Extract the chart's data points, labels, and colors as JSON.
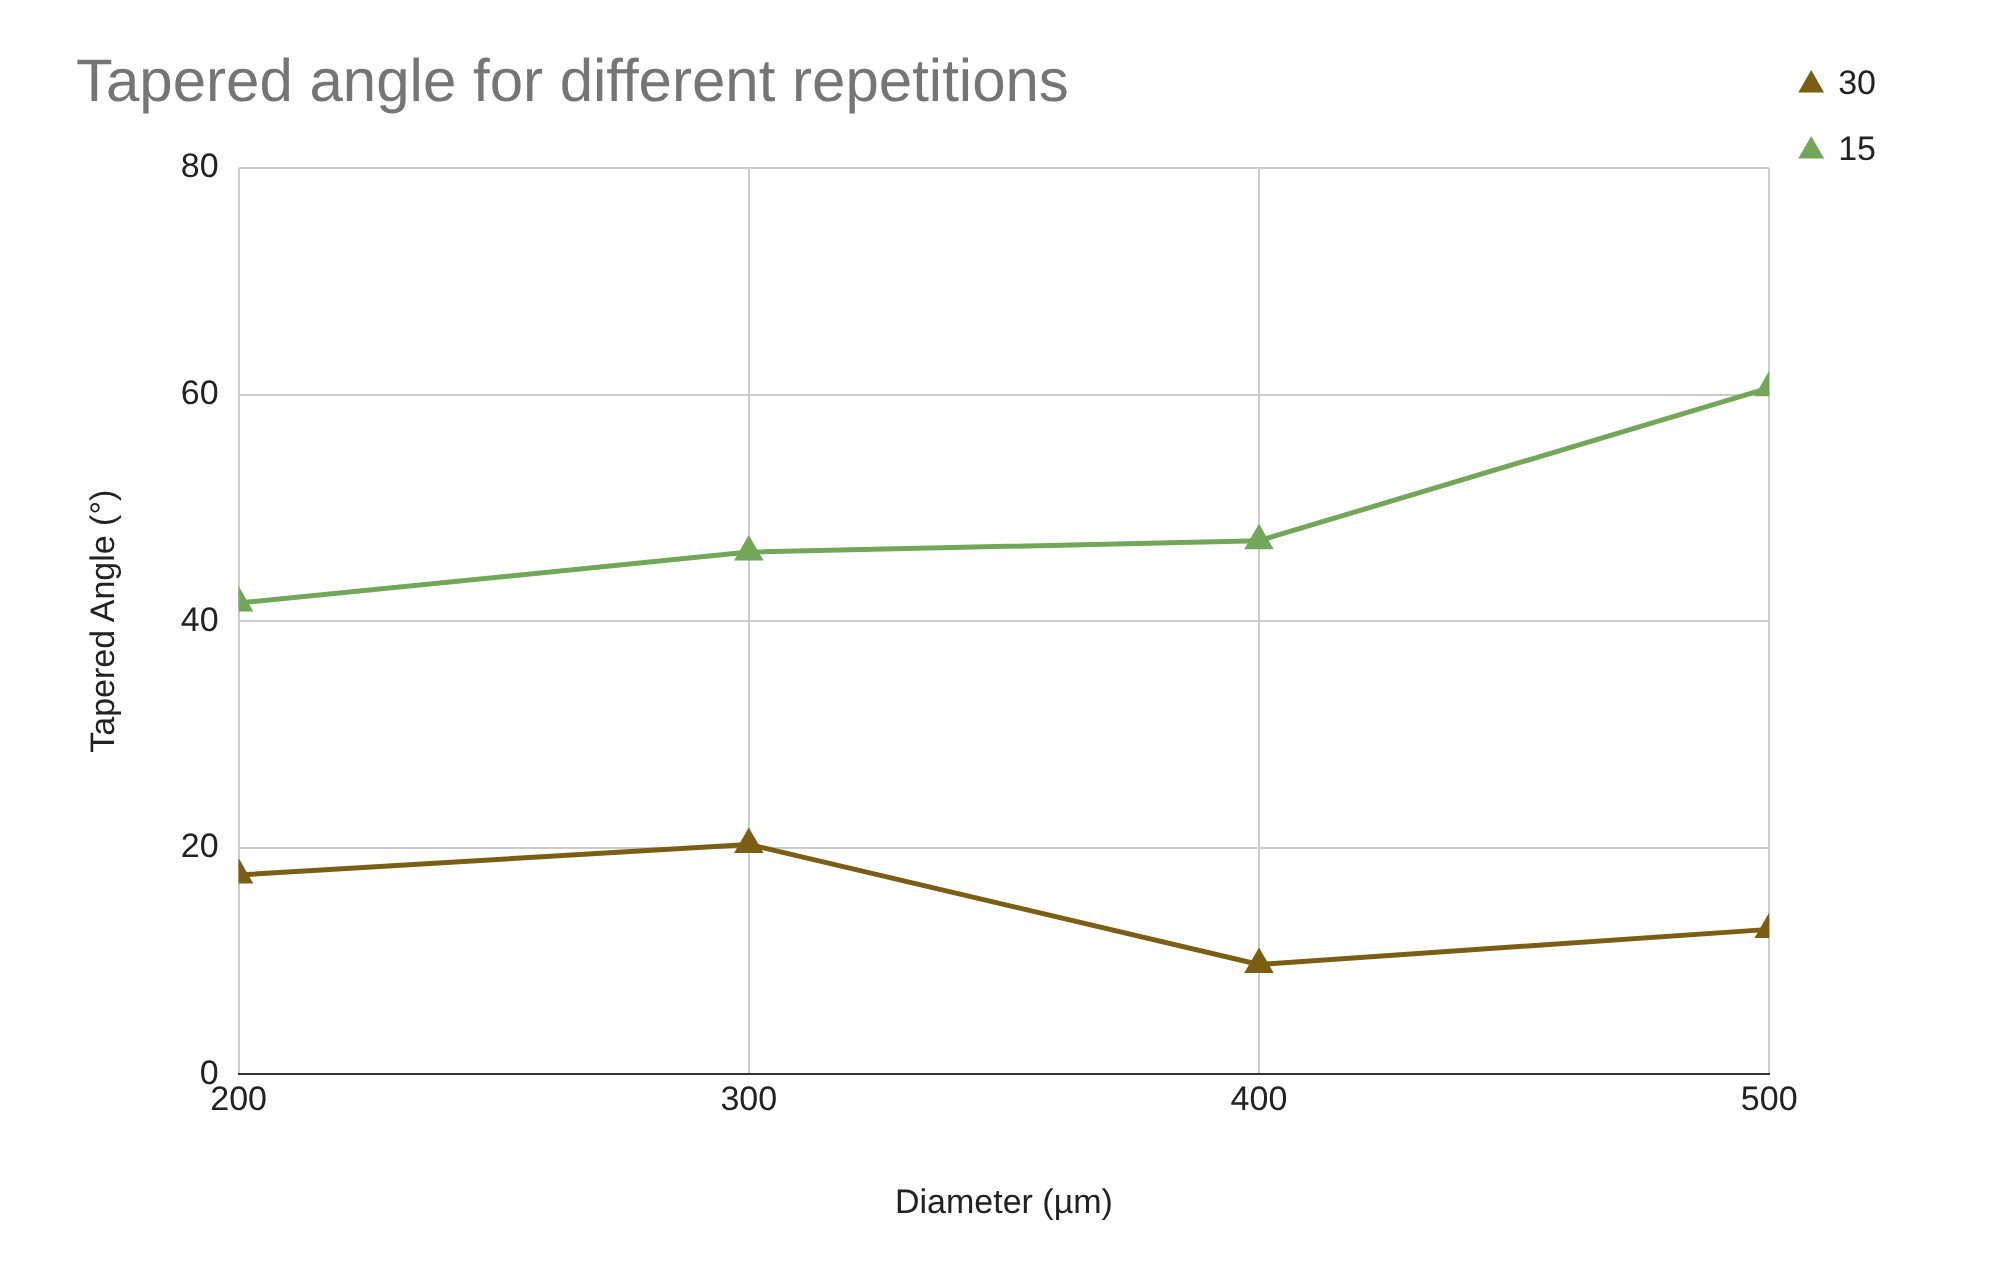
{
  "chart_data": {
    "type": "line",
    "title": "Tapered angle for different repetitions",
    "xlabel": "Diameter (µm)",
    "ylabel": "Tapered Angle (°)",
    "x": [
      200,
      300,
      400,
      500
    ],
    "series": [
      {
        "name": "30",
        "color": "#7b5e14",
        "values": [
          17.6,
          20.3,
          9.7,
          12.8
        ]
      },
      {
        "name": "15",
        "color": "#72a75a",
        "values": [
          41.6,
          46.1,
          47.1,
          60.6
        ]
      }
    ],
    "xlim": [
      200,
      500
    ],
    "xticks": [
      200,
      300,
      400,
      500
    ],
    "ylim": [
      0,
      80
    ],
    "yticks": [
      0,
      20,
      40,
      60,
      80
    ],
    "grid": true,
    "legend": "top right",
    "marker": "triangle",
    "line_style": "solid"
  }
}
